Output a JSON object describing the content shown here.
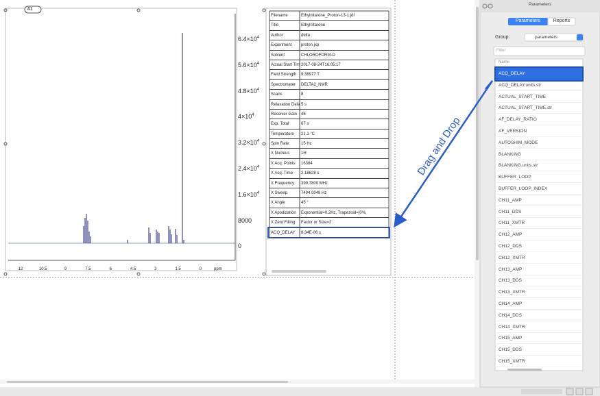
{
  "spectrum": {
    "tag": "#1",
    "y_ticks": [
      {
        "base": "6.4×10",
        "exp": "4"
      },
      {
        "base": "5.6×10",
        "exp": "4"
      },
      {
        "base": "4.8×10",
        "exp": "4"
      },
      {
        "base": "4×10",
        "exp": "4"
      },
      {
        "base": "3.2×10",
        "exp": "4"
      },
      {
        "base": "2.4×10",
        "exp": "4"
      },
      {
        "base": "1.6×10",
        "exp": "4"
      },
      {
        "base": "8000"
      },
      {
        "base": "0"
      }
    ],
    "x_ticks": [
      "12",
      "10.5",
      "9",
      "7.5",
      "6",
      "4.5",
      "3",
      "1.5",
      "0"
    ],
    "x_label": "ppm"
  },
  "table": {
    "rows": [
      [
        "Filename",
        "Ethylnitarone_Proton-13-1.jdf"
      ],
      [
        "Title",
        "Ethylnitarone"
      ],
      [
        "Author",
        "delta"
      ],
      [
        "Experiment",
        "proton.jxp"
      ],
      [
        "Solvent",
        "CHLOROFORM-D"
      ],
      [
        "Actual Start Time",
        "2017-08-24T16:05:17"
      ],
      [
        "Field Strength",
        "9.38977 T"
      ],
      [
        "Spectrometer",
        "DELTA2_NMR"
      ],
      [
        "Scans",
        "8"
      ],
      [
        "Relaxation Delay",
        "5 s"
      ],
      [
        "Receiver Gain",
        "46"
      ],
      [
        "Exp. Total",
        "67 s"
      ],
      [
        "Temperature",
        "21.1 °C"
      ],
      [
        "Spin Rate",
        "15 Hz"
      ],
      [
        "X Nucleus",
        "1H"
      ],
      [
        "X Acq. Points",
        "16384"
      ],
      [
        "X Acq. Time",
        "2.18628 s"
      ],
      [
        "X Frequency",
        "399.7800 MHz"
      ],
      [
        "X Sweep",
        "7494.0048 Hz"
      ],
      [
        "X Angle",
        "45 °"
      ],
      [
        "X Apodization",
        "Exponential=0.2Hz, Trapezoid=[0%,"
      ],
      [
        "X Zero Filling",
        "Factor or Size=2"
      ],
      [
        "ACQ_DELAY",
        "8.34E-06 s"
      ]
    ]
  },
  "annotation": "Drag and Drop",
  "panel": {
    "title": "Parameters",
    "tabs": [
      "Parameters",
      "Reports"
    ],
    "group_label": "Group:",
    "group_value": "parameters",
    "filter_placeholder": "Filter",
    "column_header": "Name",
    "items": [
      "ACQ_DELAY",
      "ACQ_DELAY.units.str",
      "ACTUAL_START_TIME",
      "ACTUAL_START_TIME.str",
      "AF_DELAY_RATIO",
      "AF_VERSION",
      "AUTOSHIM_MODE",
      "BLANKING",
      "BLANKING.units.str",
      "BUFFER_LOOP",
      "BUFFER_LOOP_INDEX",
      "CH11_AMP",
      "CH11_DDS",
      "CH11_XMTR",
      "CH12_AMP",
      "CH12_DDS",
      "CH12_XMTR",
      "CH13_AMP",
      "CH13_DDS",
      "CH13_XMTR",
      "CH14_AMP",
      "CH14_DDS",
      "CH14_XMTR",
      "CH15_AMP",
      "CH15_DDS",
      "CH15_XMTR"
    ]
  }
}
